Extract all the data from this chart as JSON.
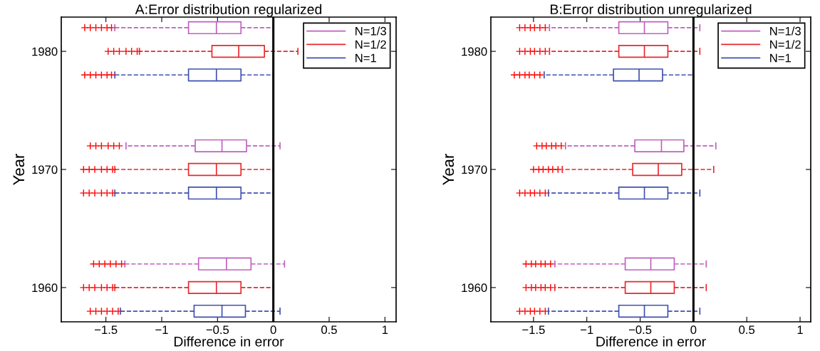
{
  "chart_data": [
    {
      "type": "box",
      "orientation": "horizontal",
      "title": "A:Error distribution regularized",
      "xlabel": "Difference in error",
      "ylabel": "Year",
      "categories": [
        "1980",
        "1970",
        "1960"
      ],
      "xlim": [
        -1.9,
        1.1
      ],
      "xticks": [
        {
          "value": -1.5,
          "label": "−1.5"
        },
        {
          "value": -1,
          "label": "−1"
        },
        {
          "value": -0.5,
          "label": "−0.5"
        },
        0,
        0.5,
        1
      ],
      "grid": false,
      "legend": "top right",
      "line_style": "dashed",
      "ref_lines": [
        {
          "axis": "x",
          "value": 0,
          "color": "#000000"
        }
      ],
      "series": [
        {
          "name": "N=1/3",
          "color": "#c060c0",
          "boxes": [
            {
              "low": -1.42,
              "q1": -0.76,
              "median": -0.51,
              "q3": -0.29,
              "high": 0.0,
              "outliers": [
                -1.69,
                -1.64,
                -1.59,
                -1.54,
                -1.49,
                -1.45
              ]
            },
            {
              "low": -1.32,
              "q1": -0.7,
              "median": -0.46,
              "q3": -0.24,
              "high": 0.06,
              "outliers": [
                -1.64,
                -1.59,
                -1.54,
                -1.48,
                -1.43,
                -1.38
              ]
            },
            {
              "low": -1.33,
              "q1": -0.67,
              "median": -0.42,
              "q3": -0.2,
              "high": 0.1,
              "outliers": [
                -1.61,
                -1.56,
                -1.51,
                -1.46,
                -1.41,
                -1.36
              ]
            }
          ]
        },
        {
          "name": "N=1/2",
          "color": "#e8282c",
          "boxes": [
            {
              "low": -1.2,
              "q1": -0.55,
              "median": -0.31,
              "q3": -0.08,
              "high": 0.22,
              "outliers": [
                -1.48,
                -1.43,
                -1.38,
                -1.32,
                -1.27,
                -1.22
              ]
            },
            {
              "low": -1.42,
              "q1": -0.76,
              "median": -0.51,
              "q3": -0.29,
              "high": 0.0,
              "outliers": [
                -1.7,
                -1.65,
                -1.6,
                -1.54,
                -1.49,
                -1.44
              ]
            },
            {
              "low": -1.42,
              "q1": -0.76,
              "median": -0.51,
              "q3": -0.29,
              "high": 0.0,
              "outliers": [
                -1.7,
                -1.65,
                -1.6,
                -1.54,
                -1.49,
                -1.44
              ]
            }
          ]
        },
        {
          "name": "N=1",
          "color": "#4050b0",
          "boxes": [
            {
              "low": -1.42,
              "q1": -0.76,
              "median": -0.51,
              "q3": -0.29,
              "high": 0.0,
              "outliers": [
                -1.69,
                -1.64,
                -1.59,
                -1.54,
                -1.49,
                -1.45
              ]
            },
            {
              "low": -1.42,
              "q1": -0.76,
              "median": -0.51,
              "q3": -0.29,
              "high": 0.0,
              "outliers": [
                -1.7,
                -1.65,
                -1.6,
                -1.54,
                -1.49,
                -1.44
              ]
            },
            {
              "low": -1.37,
              "q1": -0.71,
              "median": -0.46,
              "q3": -0.25,
              "high": 0.06,
              "outliers": [
                -1.64,
                -1.59,
                -1.54,
                -1.49,
                -1.44,
                -1.39
              ]
            }
          ]
        }
      ]
    },
    {
      "type": "box",
      "orientation": "horizontal",
      "title": "B:Error distribution unregularized",
      "xlabel": "Difference in error",
      "ylabel": "Year",
      "categories": [
        "1980",
        "1970",
        "1960"
      ],
      "xlim": [
        -1.9,
        1.1
      ],
      "xticks": [
        {
          "value": -1.5,
          "label": "−1.5"
        },
        {
          "value": -1,
          "label": "−1"
        },
        {
          "value": -0.5,
          "label": "−0.5"
        },
        0,
        0.5,
        1
      ],
      "grid": false,
      "legend": "top right",
      "line_style": "dashed",
      "ref_lines": [
        {
          "axis": "x",
          "value": 0,
          "color": "#000000"
        }
      ],
      "series": [
        {
          "name": "N=1/3",
          "color": "#c060c0",
          "boxes": [
            {
              "low": -1.35,
              "q1": -0.7,
              "median": -0.46,
              "q3": -0.24,
              "high": 0.06,
              "outliers": [
                -1.63,
                -1.58,
                -1.53,
                -1.49,
                -1.44,
                -1.39
              ]
            },
            {
              "low": -1.2,
              "q1": -0.55,
              "median": -0.3,
              "q3": -0.09,
              "high": 0.21,
              "outliers": [
                -1.47,
                -1.42,
                -1.38,
                -1.33,
                -1.29,
                -1.24
              ]
            },
            {
              "low": -1.3,
              "q1": -0.64,
              "median": -0.4,
              "q3": -0.18,
              "high": 0.12,
              "outliers": [
                -1.57,
                -1.52,
                -1.48,
                -1.43,
                -1.39,
                -1.34
              ]
            }
          ]
        },
        {
          "name": "N=1/2",
          "color": "#e8282c",
          "boxes": [
            {
              "low": -1.35,
              "q1": -0.7,
              "median": -0.46,
              "q3": -0.24,
              "high": 0.06,
              "outliers": [
                -1.63,
                -1.58,
                -1.53,
                -1.49,
                -1.44,
                -1.39
              ]
            },
            {
              "low": -1.23,
              "q1": -0.57,
              "median": -0.33,
              "q3": -0.11,
              "high": 0.19,
              "outliers": [
                -1.5,
                -1.45,
                -1.41,
                -1.36,
                -1.32,
                -1.27
              ]
            },
            {
              "low": -1.3,
              "q1": -0.64,
              "median": -0.4,
              "q3": -0.18,
              "high": 0.12,
              "outliers": [
                -1.57,
                -1.52,
                -1.48,
                -1.43,
                -1.39,
                -1.34
              ]
            }
          ]
        },
        {
          "name": "N=1",
          "color": "#4050b0",
          "boxes": [
            {
              "low": -1.4,
              "q1": -0.75,
              "median": -0.51,
              "q3": -0.29,
              "high": 0.0,
              "outliers": [
                -1.68,
                -1.63,
                -1.58,
                -1.54,
                -1.49,
                -1.44
              ]
            },
            {
              "low": -1.36,
              "q1": -0.7,
              "median": -0.46,
              "q3": -0.24,
              "high": 0.06,
              "outliers": [
                -1.63,
                -1.58,
                -1.53,
                -1.49,
                -1.44,
                -1.39
              ]
            },
            {
              "low": -1.36,
              "q1": -0.7,
              "median": -0.46,
              "q3": -0.24,
              "high": 0.06,
              "outliers": [
                -1.63,
                -1.58,
                -1.53,
                -1.49,
                -1.44,
                -1.39
              ]
            }
          ]
        }
      ]
    }
  ]
}
